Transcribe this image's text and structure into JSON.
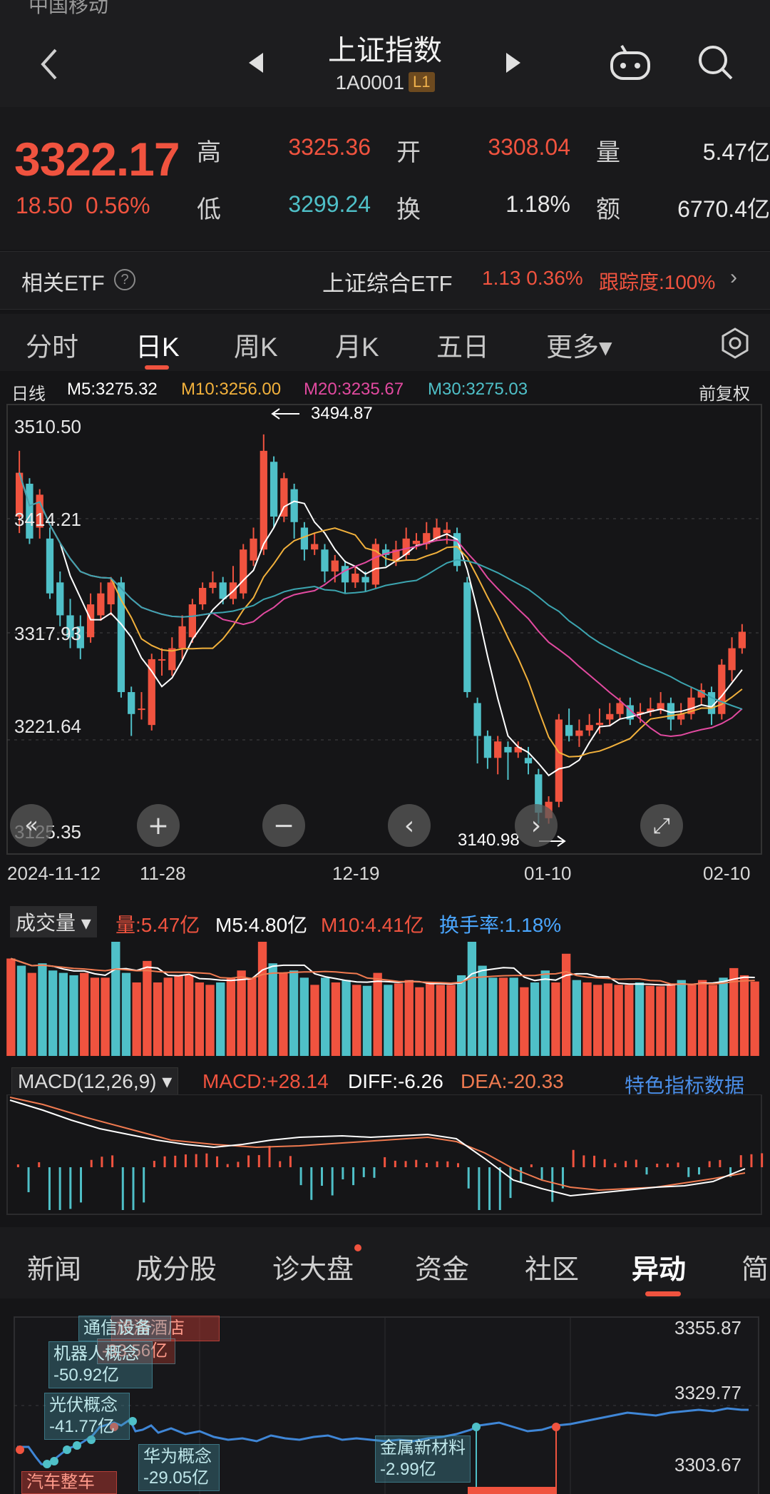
{
  "header": {
    "status_text": "中国移动",
    "title": "上证指数",
    "code": "1A0001",
    "level": "L1"
  },
  "quote": {
    "price": "3322.17",
    "change": "18.50",
    "change_pct": "0.56%",
    "high_label": "高",
    "high": "3325.36",
    "open_label": "开",
    "open": "3308.04",
    "volume_label": "量",
    "volume": "5.47亿",
    "low_label": "低",
    "low": "3299.24",
    "turnover_label": "换",
    "turnover": "1.18%",
    "amount_label": "额",
    "amount": "6770.4亿"
  },
  "etf": {
    "label": "相关ETF",
    "help": "?",
    "name": "上证综合ETF",
    "price_change": "1.13 0.36%",
    "tracking": "跟踪度:100%",
    "chevron": "›"
  },
  "chart_tabs": [
    "分时",
    "日K",
    "周K",
    "月K",
    "五日",
    "更多▾"
  ],
  "ma_legend": {
    "period": "日线",
    "m5": "M5:3275.32",
    "m10": "M10:3256.00",
    "m20": "M20:3235.67",
    "m30": "M30:3275.03",
    "adjust": "前复权"
  },
  "colors": {
    "up": "#f0533f",
    "down": "#4fc0c8",
    "m5": "#ffffff",
    "m10": "#f2b13c",
    "m20": "#e24aa0",
    "m30": "#3ca5b0"
  },
  "kline_labels": {
    "y_ticks": [
      "3510.50",
      "3414.21",
      "3317.93",
      "3221.64",
      "3125.35"
    ],
    "max_annotation": "3494.87",
    "min_annotation": "3140.98",
    "dates": [
      "2024-11-12",
      "11-28",
      "12-19",
      "01-10",
      "02-10"
    ]
  },
  "chart_controls": [
    "«",
    "+",
    "−",
    "‹",
    "›",
    "⤢"
  ],
  "volume": {
    "selector": "成交量 ▾",
    "vol": "量:5.47亿",
    "m5": "M5:4.80亿",
    "m10": "M10:4.41亿",
    "turnover": "换手率:1.18%"
  },
  "macd": {
    "selector": "MACD(12,26,9) ▾",
    "macd": "MACD:+28.14",
    "diff": "DIFF:-6.26",
    "dea": "DEA:-20.33",
    "feature": "特色指标数据"
  },
  "bottom_tabs": [
    "新闻",
    "成分股",
    "诊大盘",
    "资金",
    "社区",
    "异动",
    "简"
  ],
  "intraday": {
    "prices": [
      "3355.87",
      "3329.77",
      "3303.67"
    ],
    "annotations": {
      "a1": "机器人概念",
      "a1v": "-50.92亿",
      "a2": "光伏概念",
      "a2v": "-41.77亿",
      "a3": "华为概念",
      "a3v": "-29.05亿",
      "a4": "金属新材料",
      "a4v": "-2.99亿",
      "a5": "汽车整车",
      "a6": "旅游酒店",
      "a7": "通信设备",
      "a8": "-33.56亿"
    }
  },
  "chart_data": {
    "type": "candlestick",
    "title": "上证指数 日K",
    "ylim": [
      3125.35,
      3510.5
    ],
    "x_labels": [
      "2024-11-12",
      "11-28",
      "12-19",
      "01-10",
      "02-10"
    ],
    "candles": [
      [
        3420,
        3460,
        3480,
        3405
      ],
      [
        3450,
        3400,
        3455,
        3395
      ],
      [
        3410,
        3440,
        3445,
        3400
      ],
      [
        3400,
        3350,
        3410,
        3345
      ],
      [
        3360,
        3330,
        3370,
        3320
      ],
      [
        3330,
        3310,
        3345,
        3300
      ],
      [
        3320,
        3300,
        3330,
        3290
      ],
      [
        3310,
        3340,
        3350,
        3305
      ],
      [
        3330,
        3350,
        3360,
        3325
      ],
      [
        3340,
        3360,
        3365,
        3330
      ],
      [
        3360,
        3260,
        3365,
        3255
      ],
      [
        3260,
        3240,
        3265,
        3220
      ],
      [
        3245,
        3245,
        3260,
        3235
      ],
      [
        3230,
        3290,
        3295,
        3225
      ],
      [
        3290,
        3290,
        3300,
        3275
      ],
      [
        3280,
        3300,
        3310,
        3275
      ],
      [
        3300,
        3320,
        3330,
        3290
      ],
      [
        3310,
        3340,
        3345,
        3305
      ],
      [
        3340,
        3355,
        3360,
        3335
      ],
      [
        3355,
        3360,
        3370,
        3350
      ],
      [
        3360,
        3345,
        3365,
        3340
      ],
      [
        3345,
        3360,
        3375,
        3340
      ],
      [
        3350,
        3390,
        3395,
        3345
      ],
      [
        3380,
        3400,
        3410,
        3375
      ],
      [
        3390,
        3480,
        3495,
        3385
      ],
      [
        3470,
        3420,
        3475,
        3410
      ],
      [
        3420,
        3455,
        3460,
        3415
      ],
      [
        3445,
        3415,
        3450,
        3400
      ],
      [
        3410,
        3390,
        3415,
        3380
      ],
      [
        3390,
        3395,
        3405,
        3385
      ],
      [
        3390,
        3370,
        3395,
        3360
      ],
      [
        3370,
        3380,
        3385,
        3360
      ],
      [
        3375,
        3360,
        3380,
        3350
      ],
      [
        3360,
        3368,
        3375,
        3355
      ],
      [
        3365,
        3360,
        3370,
        3352
      ],
      [
        3358,
        3395,
        3400,
        3355
      ],
      [
        3390,
        3385,
        3395,
        3375
      ],
      [
        3380,
        3390,
        3398,
        3375
      ],
      [
        3385,
        3400,
        3410,
        3380
      ],
      [
        3395,
        3398,
        3405,
        3390
      ],
      [
        3395,
        3405,
        3415,
        3390
      ],
      [
        3400,
        3410,
        3418,
        3398
      ],
      [
        3405,
        3408,
        3415,
        3395
      ],
      [
        3405,
        3375,
        3410,
        3370
      ],
      [
        3360,
        3260,
        3365,
        3255
      ],
      [
        3250,
        3220,
        3255,
        3195
      ],
      [
        3220,
        3200,
        3225,
        3190
      ],
      [
        3200,
        3215,
        3220,
        3185
      ],
      [
        3210,
        3205,
        3215,
        3180
      ],
      [
        3205,
        3210,
        3215,
        3200
      ],
      [
        3200,
        3195,
        3210,
        3185
      ],
      [
        3185,
        3150,
        3190,
        3140
      ],
      [
        3145,
        3160,
        3165,
        3140
      ],
      [
        3160,
        3235,
        3240,
        3155
      ],
      [
        3230,
        3220,
        3245,
        3215
      ],
      [
        3220,
        3225,
        3235,
        3210
      ],
      [
        3225,
        3230,
        3240,
        3220
      ],
      [
        3230,
        3232,
        3245,
        3222
      ],
      [
        3235,
        3240,
        3250,
        3230
      ],
      [
        3240,
        3250,
        3255,
        3235
      ],
      [
        3248,
        3235,
        3255,
        3230
      ],
      [
        3240,
        3242,
        3250,
        3232
      ],
      [
        3242,
        3245,
        3255,
        3238
      ],
      [
        3244,
        3250,
        3260,
        3240
      ],
      [
        3250,
        3235,
        3255,
        3225
      ],
      [
        3235,
        3240,
        3250,
        3230
      ],
      [
        3240,
        3255,
        3265,
        3235
      ],
      [
        3255,
        3262,
        3268,
        3248
      ],
      [
        3260,
        3240,
        3265,
        3230
      ],
      [
        3240,
        3285,
        3290,
        3235
      ],
      [
        3280,
        3300,
        3310,
        3270
      ],
      [
        3300,
        3315,
        3322,
        3295
      ]
    ]
  }
}
